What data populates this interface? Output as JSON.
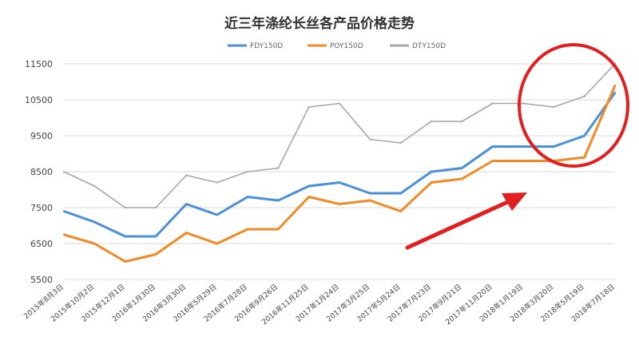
{
  "chart_data": {
    "type": "line",
    "title": "近三年涤纶长丝各产品价格走势",
    "xlabel": "",
    "ylabel": "",
    "ylim": [
      5500,
      11500
    ],
    "yticks": [
      5500,
      6500,
      7500,
      8500,
      9500,
      10500,
      11500
    ],
    "grid": true,
    "legend_position": "top-center",
    "x_tick_labels": [
      "2015年8月3日",
      "2015年10月2日",
      "2015年12月1日",
      "2016年1月30日",
      "2016年3月30日",
      "2016年5月29日",
      "2016年7月28日",
      "2016年9月26日",
      "2016年11月25日",
      "2017年1月24日",
      "2017年3月25日",
      "2017年5月24日",
      "2017年7月23日",
      "2017年9月21日",
      "2017年11月20日",
      "2018年1月19日",
      "2018年3月20日",
      "2018年5月19日",
      "2018年7月18日"
    ],
    "x_index": [
      0,
      1,
      2,
      3,
      4,
      5,
      6,
      7,
      8,
      9,
      10,
      11,
      12,
      13,
      14,
      15,
      16,
      17,
      18
    ],
    "series": [
      {
        "name": "FDY150D",
        "color": "#4a90d9",
        "values": [
          7400,
          7100,
          6700,
          6700,
          7600,
          7300,
          7800,
          7700,
          8100,
          8200,
          7900,
          7900,
          8500,
          8600,
          9200,
          9200,
          9200,
          9500,
          10700
        ]
      },
      {
        "name": "POY150D",
        "color": "#f08a24",
        "values": [
          6750,
          6500,
          6000,
          6200,
          6800,
          6500,
          6900,
          6900,
          7800,
          7600,
          7700,
          7400,
          8200,
          8300,
          8800,
          8800,
          8800,
          8900,
          10900
        ]
      },
      {
        "name": "DTY150D",
        "color": "#a6a6a6",
        "values": [
          8500,
          8100,
          7500,
          7500,
          8400,
          8200,
          8500,
          8600,
          10300,
          10400,
          9400,
          9300,
          9900,
          9900,
          10400,
          10400,
          10300,
          10600,
          11500
        ]
      }
    ],
    "annotations": {
      "ellipse": {
        "color": "#e02020"
      },
      "arrow": {
        "color": "#e02020"
      }
    }
  }
}
